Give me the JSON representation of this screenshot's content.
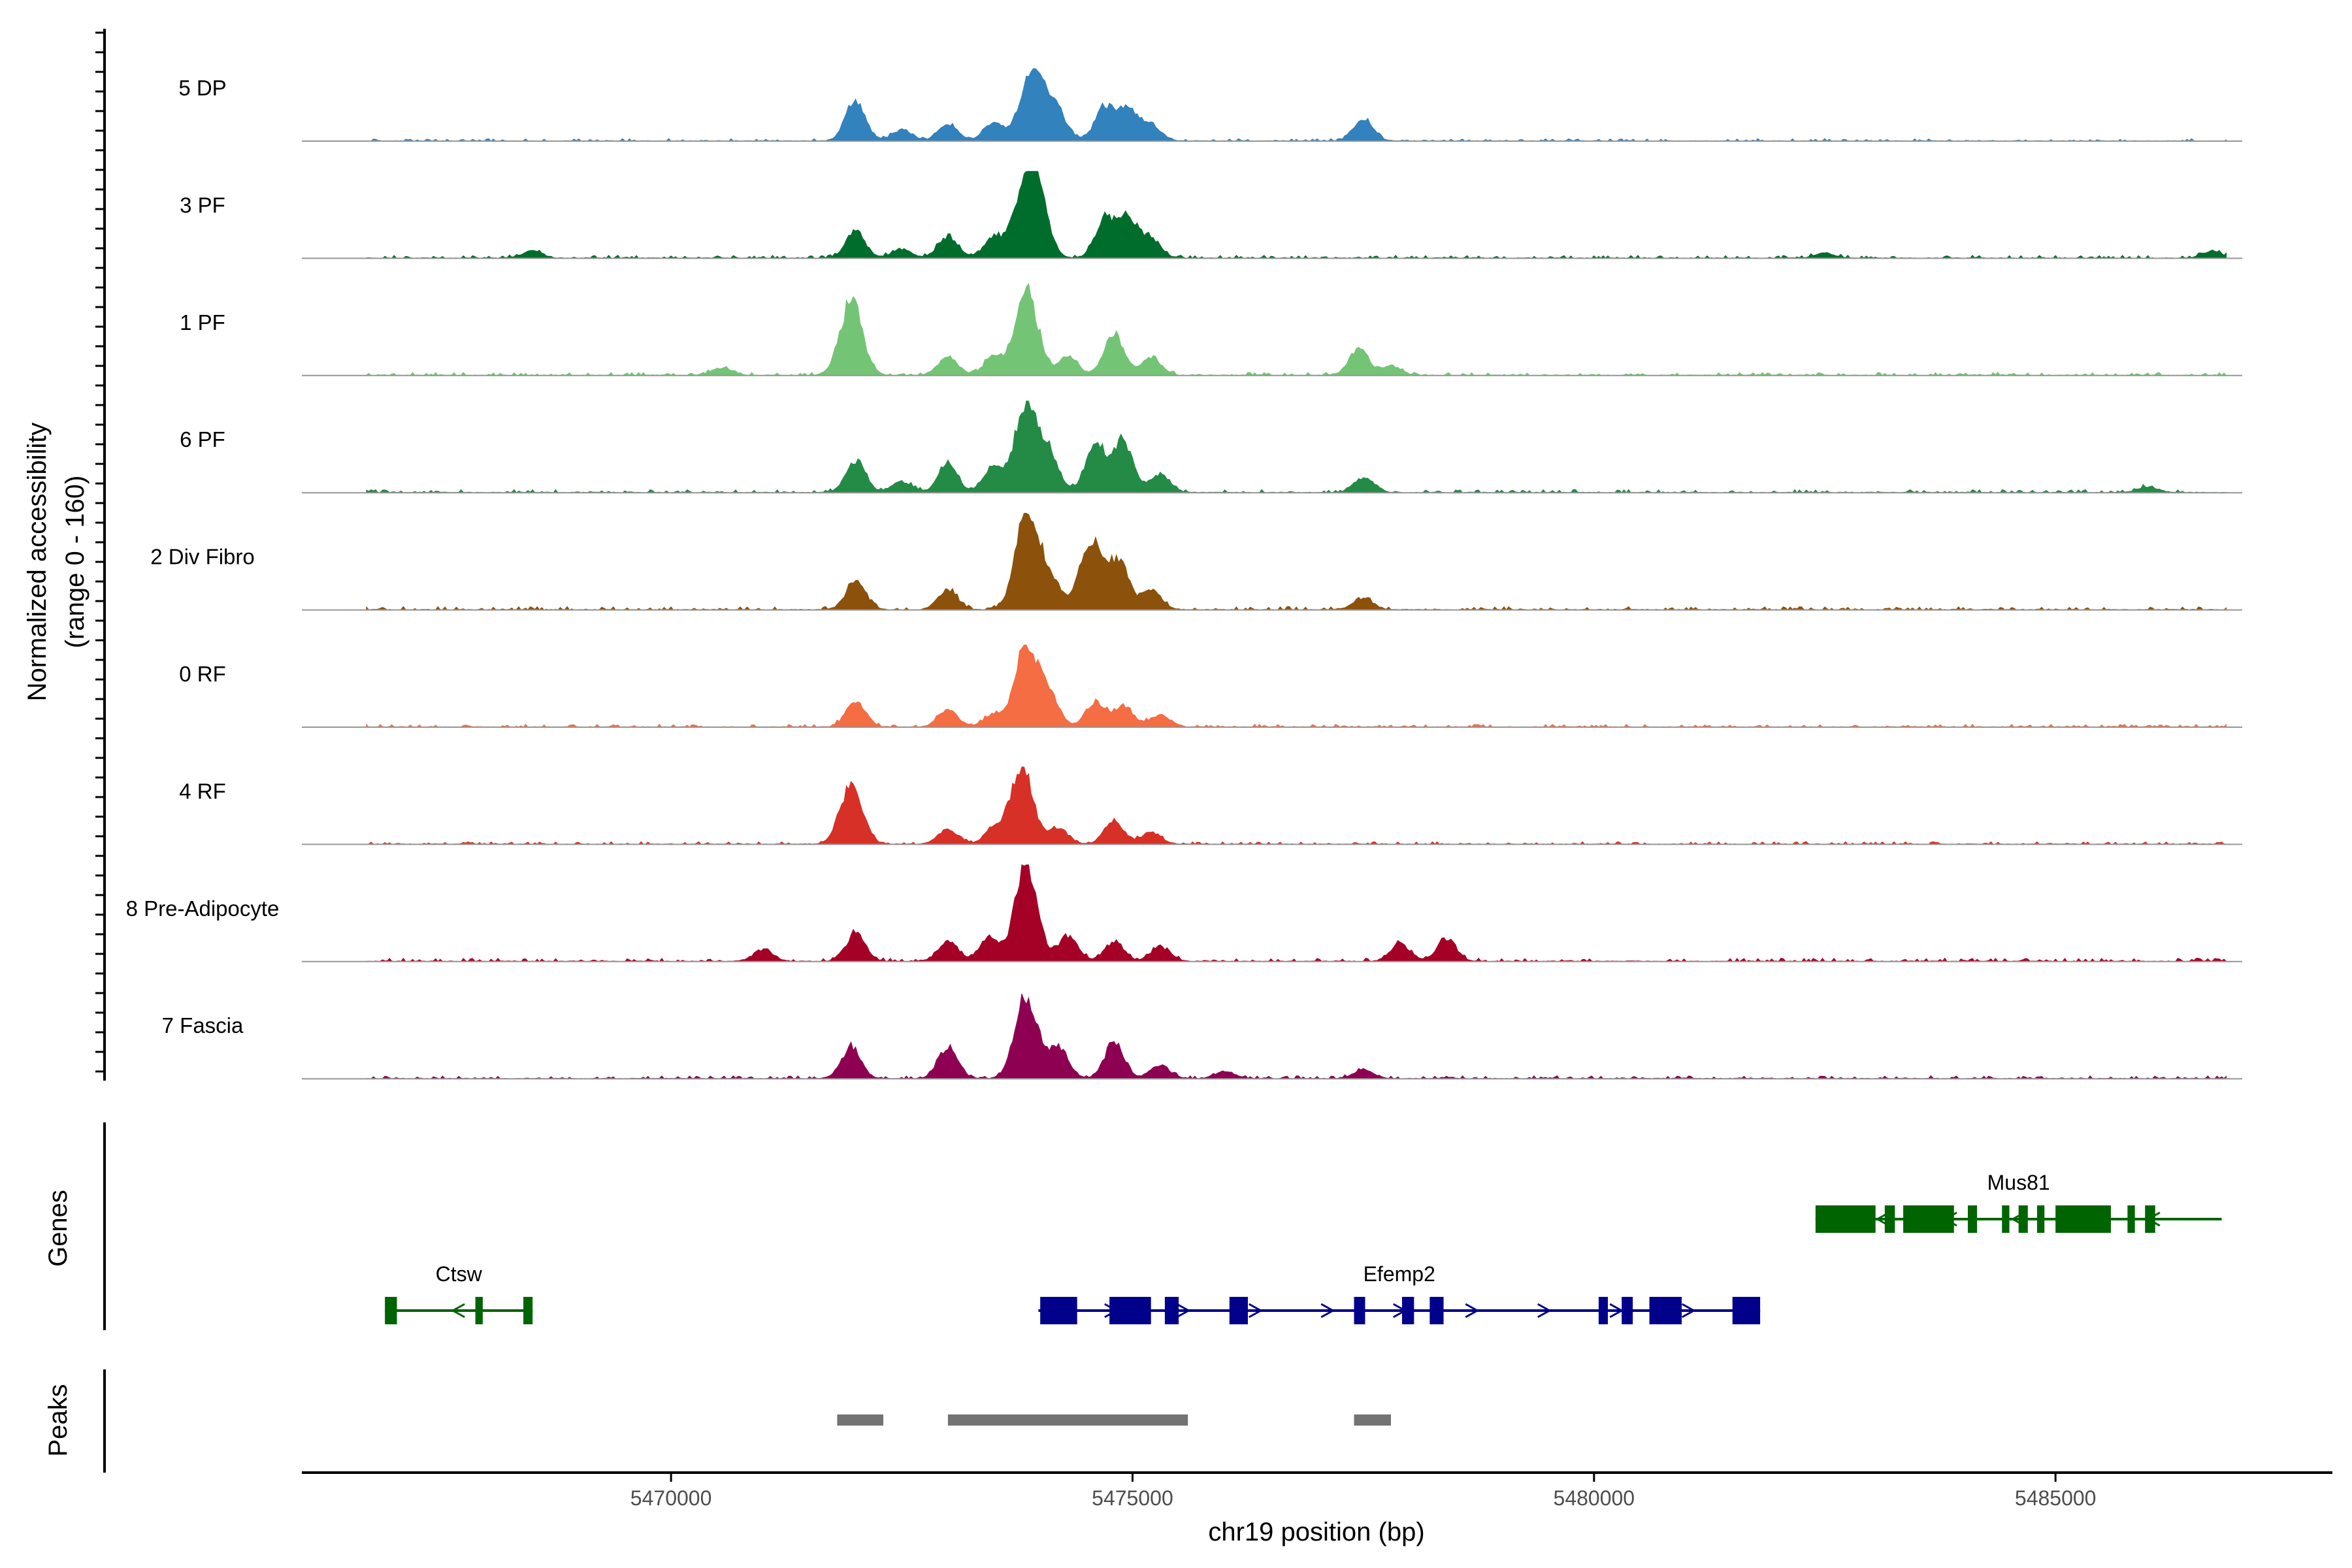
{
  "chart_data": {
    "type": "area",
    "title": "",
    "ylabel_line1": "Normalized accessibility",
    "ylabel_line2": "(range 0 - 160)",
    "xlabel": "chr19 position (bp)",
    "xlim": [
      5466000,
      5488000
    ],
    "xticks": [
      5470000,
      5475000,
      5480000,
      5485000
    ],
    "xtick_labels": [
      "5470000",
      "5475000",
      "5480000",
      "5485000"
    ],
    "ylim": [
      0,
      160
    ],
    "tracks": [
      {
        "name": "5 DP",
        "color": "#3182bd",
        "scale": 0.75,
        "peaks": [
          [
            5472000,
            0.55
          ],
          [
            5472500,
            0.15
          ],
          [
            5473000,
            0.22
          ],
          [
            5473500,
            0.25
          ],
          [
            5473850,
            0.55
          ],
          [
            5474000,
            0.65
          ],
          [
            5474200,
            0.3
          ],
          [
            5474700,
            0.45
          ],
          [
            5474950,
            0.45
          ],
          [
            5475200,
            0.22
          ],
          [
            5477500,
            0.3
          ]
        ]
      },
      {
        "name": "3 PF",
        "color": "#006d2c",
        "scale": 0.9,
        "peaks": [
          [
            5472000,
            0.3
          ],
          [
            5472500,
            0.1
          ],
          [
            5473000,
            0.25
          ],
          [
            5473500,
            0.25
          ],
          [
            5473850,
            0.9
          ],
          [
            5474000,
            0.5
          ],
          [
            5474700,
            0.45
          ],
          [
            5474950,
            0.45
          ],
          [
            5475200,
            0.2
          ],
          [
            5468500,
            0.08
          ],
          [
            5482500,
            0.06
          ],
          [
            5486700,
            0.08
          ]
        ]
      },
      {
        "name": "1 PF",
        "color": "#74c476",
        "scale": 0.95,
        "peaks": [
          [
            5471950,
            0.8
          ],
          [
            5473000,
            0.2
          ],
          [
            5473500,
            0.2
          ],
          [
            5473850,
            0.95
          ],
          [
            5474300,
            0.2
          ],
          [
            5474800,
            0.45
          ],
          [
            5475200,
            0.2
          ],
          [
            5477450,
            0.28
          ],
          [
            5477800,
            0.1
          ],
          [
            5470550,
            0.08
          ]
        ]
      },
      {
        "name": "6 PF",
        "color": "#238b45",
        "scale": 0.95,
        "peaks": [
          [
            5472000,
            0.35
          ],
          [
            5472500,
            0.12
          ],
          [
            5473000,
            0.3
          ],
          [
            5473500,
            0.28
          ],
          [
            5473850,
            0.95
          ],
          [
            5474100,
            0.4
          ],
          [
            5474600,
            0.55
          ],
          [
            5474900,
            0.55
          ],
          [
            5475300,
            0.2
          ],
          [
            5477500,
            0.15
          ],
          [
            5486000,
            0.06
          ]
        ]
      },
      {
        "name": "2 Div Fibro",
        "color": "#8c510a",
        "scale": 1.0,
        "peaks": [
          [
            5472000,
            0.3
          ],
          [
            5473000,
            0.2
          ],
          [
            5473850,
            1.0
          ],
          [
            5474100,
            0.35
          ],
          [
            5474550,
            0.7
          ],
          [
            5474850,
            0.5
          ],
          [
            5475200,
            0.2
          ],
          [
            5477500,
            0.12
          ]
        ]
      },
      {
        "name": "0 RF",
        "color": "#f46d43",
        "scale": 0.85,
        "peaks": [
          [
            5472000,
            0.3
          ],
          [
            5473000,
            0.2
          ],
          [
            5473500,
            0.15
          ],
          [
            5473850,
            1.0
          ],
          [
            5474100,
            0.35
          ],
          [
            5474600,
            0.3
          ],
          [
            5474900,
            0.25
          ],
          [
            5475300,
            0.15
          ]
        ]
      },
      {
        "name": "4 RF",
        "color": "#d73027",
        "scale": 0.8,
        "peaks": [
          [
            5471950,
            0.75
          ],
          [
            5473000,
            0.2
          ],
          [
            5473500,
            0.2
          ],
          [
            5473800,
            1.0
          ],
          [
            5474200,
            0.2
          ],
          [
            5474800,
            0.3
          ],
          [
            5475200,
            0.15
          ]
        ]
      },
      {
        "name": "8 Pre-Adipocyte",
        "color": "#a50026",
        "scale": 1.0,
        "peaks": [
          [
            5472000,
            0.28
          ],
          [
            5473000,
            0.2
          ],
          [
            5473450,
            0.25
          ],
          [
            5473850,
            1.0
          ],
          [
            5474300,
            0.25
          ],
          [
            5474800,
            0.2
          ],
          [
            5475300,
            0.15
          ],
          [
            5477900,
            0.18
          ],
          [
            5478400,
            0.22
          ],
          [
            5471000,
            0.12
          ]
        ]
      },
      {
        "name": "7 Fascia",
        "color": "#8e0152",
        "scale": 0.9,
        "peaks": [
          [
            5471950,
            0.35
          ],
          [
            5473000,
            0.35
          ],
          [
            5473850,
            0.95
          ],
          [
            5474200,
            0.35
          ],
          [
            5474800,
            0.4
          ],
          [
            5475300,
            0.15
          ],
          [
            5476000,
            0.08
          ],
          [
            5477500,
            0.1
          ]
        ]
      }
    ],
    "genes": [
      {
        "name": "Mus81",
        "strand": "-",
        "color": "#006400",
        "start": 5482400,
        "end": 5486800,
        "row": 0,
        "exons": [
          [
            5482400,
            5483050
          ],
          [
            5483150,
            5483260
          ],
          [
            5483350,
            5483900
          ],
          [
            5484050,
            5484150
          ],
          [
            5484420,
            5484500
          ],
          [
            5484600,
            5484700
          ],
          [
            5484800,
            5484880
          ],
          [
            5485000,
            5485600
          ],
          [
            5485780,
            5485860
          ],
          [
            5485970,
            5486080
          ]
        ]
      },
      {
        "name": "Ctsw",
        "strand": "-",
        "color": "#006400",
        "start": 5466900,
        "end": 5468500,
        "row": 1,
        "exons": [
          [
            5466900,
            5467030
          ],
          [
            5467880,
            5467960
          ],
          [
            5468400,
            5468500
          ]
        ]
      },
      {
        "name": "Efemp2",
        "strand": "+",
        "color": "#00008b",
        "start": 5473980,
        "end": 5481800,
        "row": 1,
        "exons": [
          [
            5474000,
            5474400
          ],
          [
            5474750,
            5475200
          ],
          [
            5475350,
            5475500
          ],
          [
            5476050,
            5476250
          ],
          [
            5477400,
            5477520
          ],
          [
            5477920,
            5478050
          ],
          [
            5478220,
            5478370
          ],
          [
            5480050,
            5480150
          ],
          [
            5480300,
            5480420
          ],
          [
            5480600,
            5480950
          ],
          [
            5481500,
            5481800
          ]
        ]
      }
    ],
    "peak_regions": [
      [
        5471800,
        5472300
      ],
      [
        5473000,
        5475600
      ],
      [
        5477400,
        5477800
      ]
    ],
    "genes_label": "Genes",
    "peaks_label": "Peaks",
    "colors": {
      "peak_region": "#737373",
      "baseline": "#969696",
      "axis": "#000000"
    }
  }
}
